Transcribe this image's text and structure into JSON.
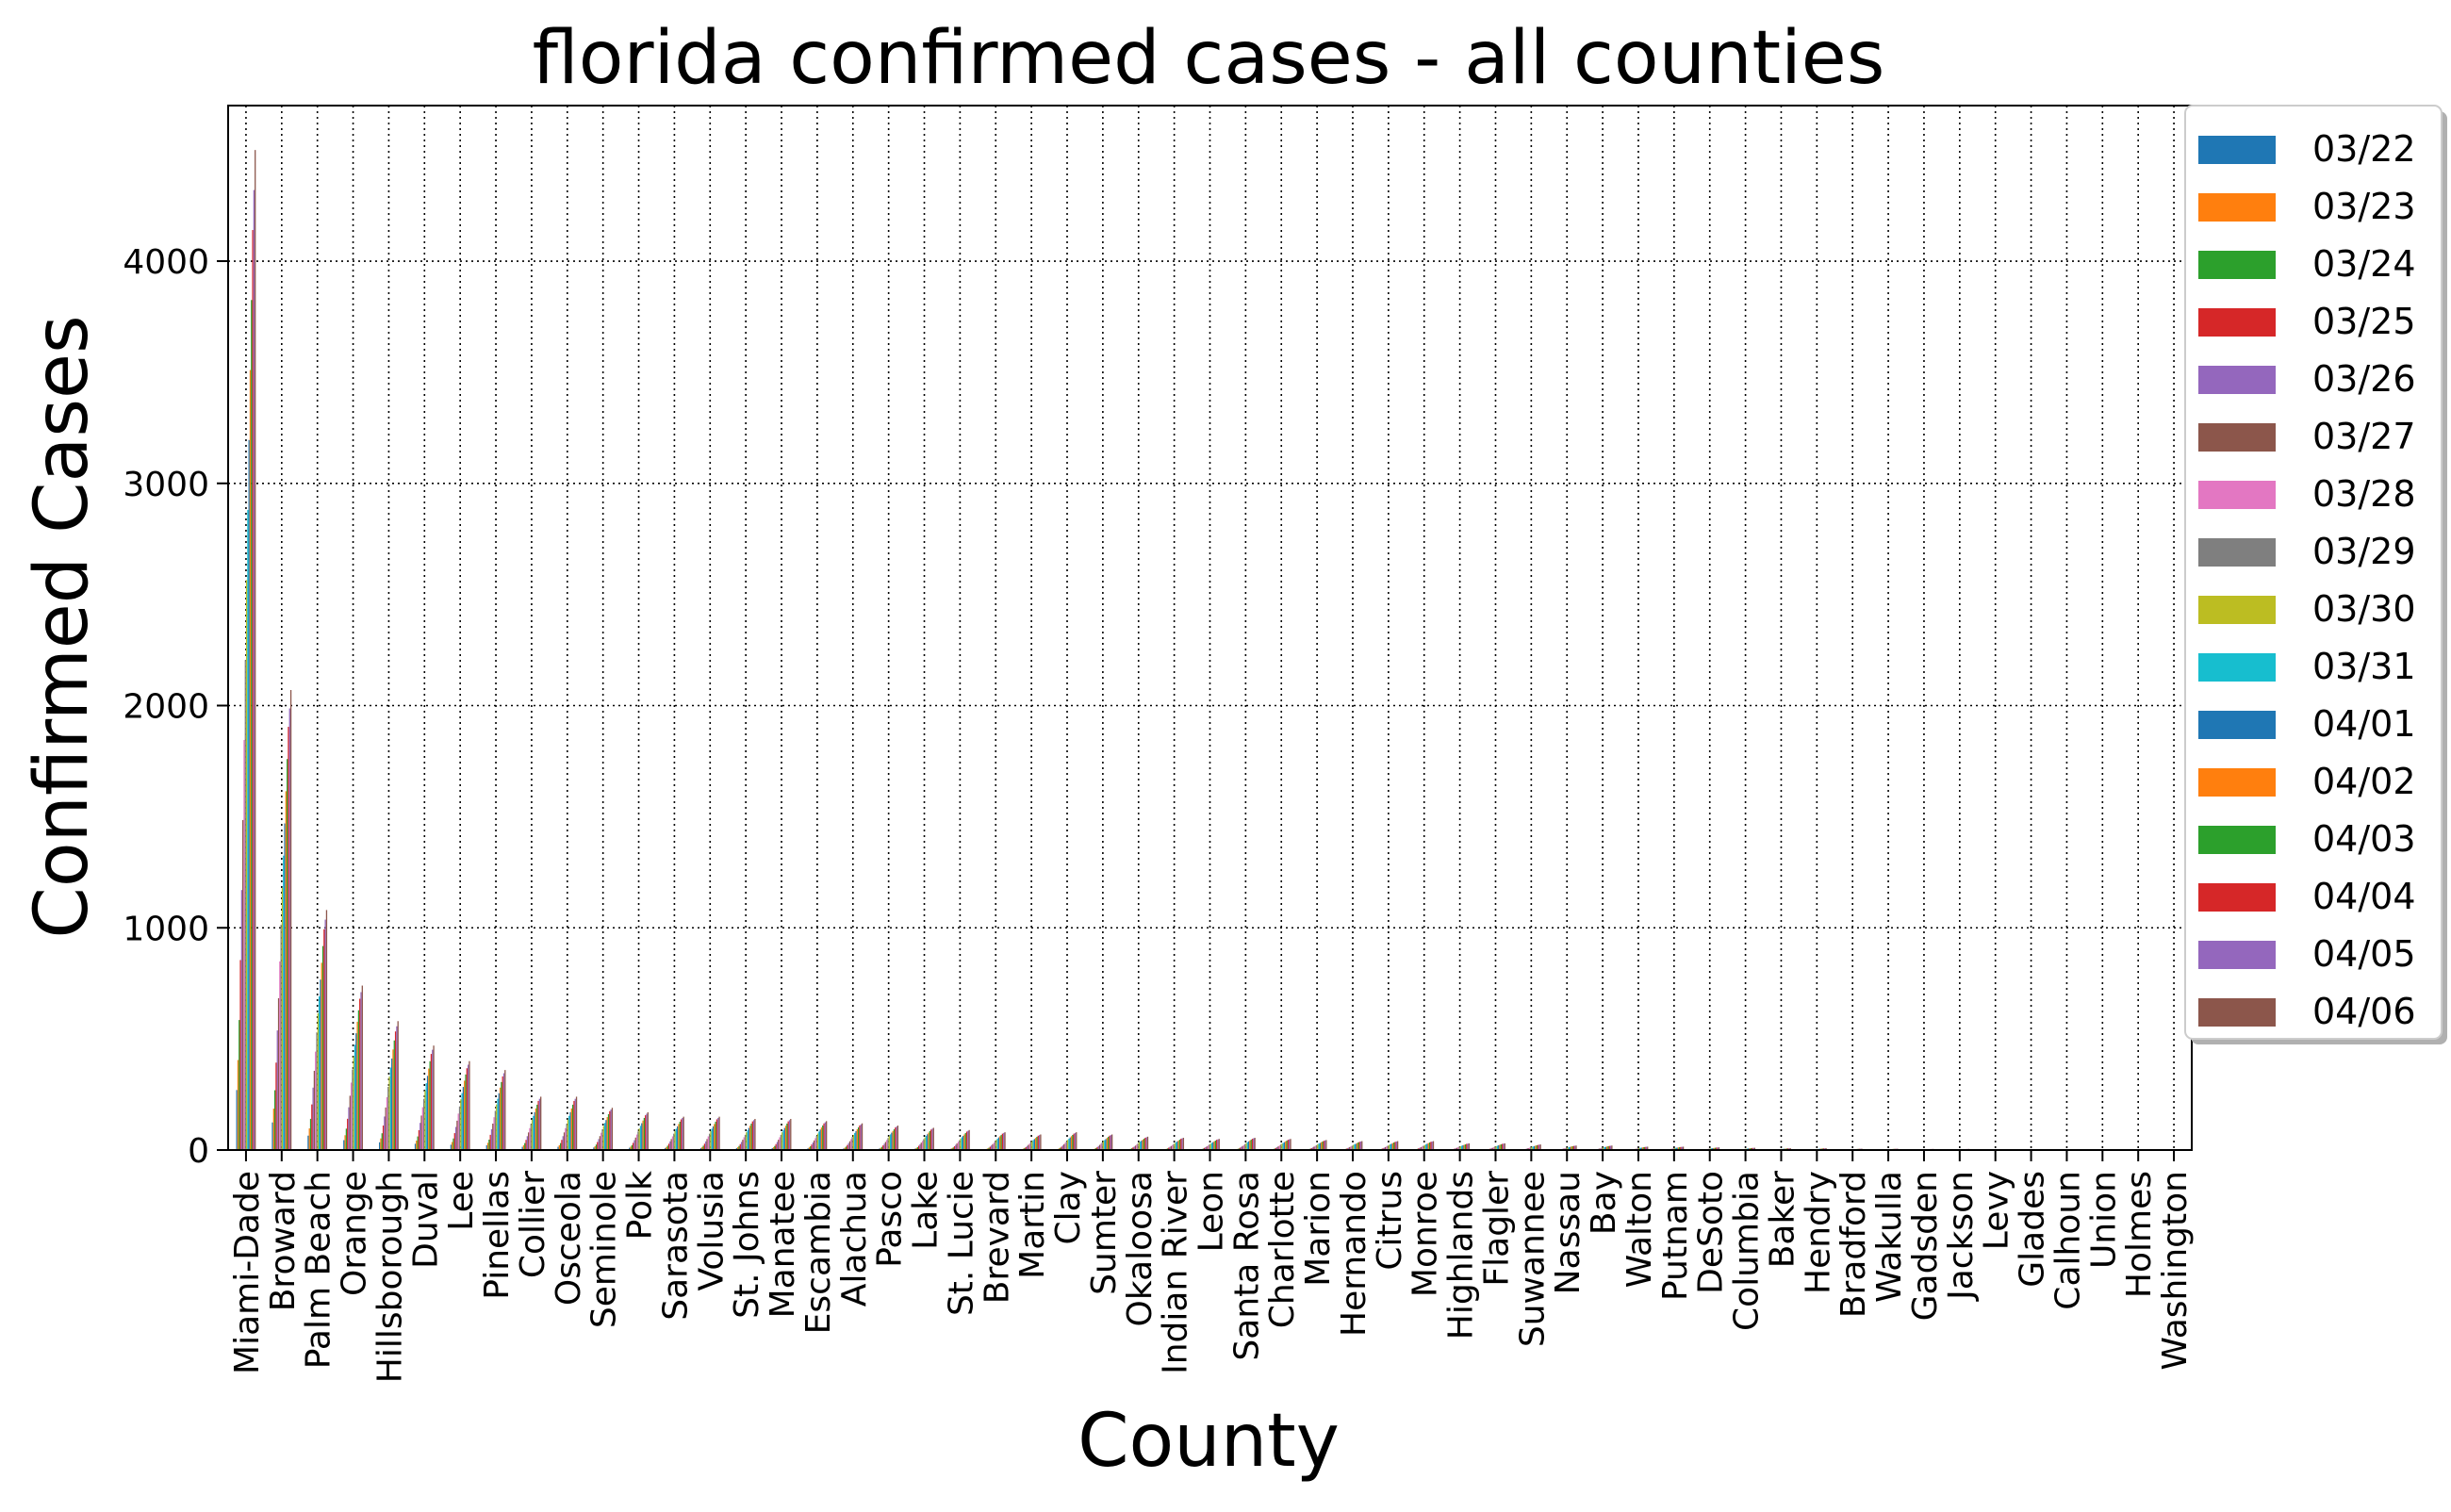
{
  "chart_data": {
    "type": "bar",
    "title": "florida confirmed cases - all counties",
    "xlabel": "County",
    "ylabel": "Confirmed Cases",
    "ylim": [
      0,
      4700
    ],
    "yticks": [
      0,
      1000,
      2000,
      3000,
      4000
    ],
    "grid": true,
    "legend_position": "top-right",
    "categories": [
      "Miami-Dade",
      "Broward",
      "Palm Beach",
      "Orange",
      "Hillsborough",
      "Duval",
      "Lee",
      "Pinellas",
      "Collier",
      "Osceola",
      "Seminole",
      "Polk",
      "Sarasota",
      "Volusia",
      "St. Johns",
      "Manatee",
      "Escambia",
      "Alachua",
      "Pasco",
      "Lake",
      "St. Lucie",
      "Brevard",
      "Martin",
      "Clay",
      "Sumter",
      "Okaloosa",
      "Indian River",
      "Leon",
      "Santa Rosa",
      "Charlotte",
      "Marion",
      "Hernando",
      "Citrus",
      "Monroe",
      "Highlands",
      "Flagler",
      "Suwannee",
      "Nassau",
      "Bay",
      "Walton",
      "Putnam",
      "DeSoto",
      "Columbia",
      "Baker",
      "Hendry",
      "Bradford",
      "Wakulla",
      "Gadsden",
      "Jackson",
      "Levy",
      "Glades",
      "Calhoun",
      "Union",
      "Holmes",
      "Washington"
    ],
    "dates": [
      "03/22",
      "03/23",
      "03/24",
      "03/25",
      "03/26",
      "03/27",
      "03/28",
      "03/29",
      "03/30",
      "03/31",
      "04/01",
      "04/02",
      "04/03",
      "04/04",
      "04/05",
      "04/06"
    ],
    "series_colors": [
      "#1f77b4",
      "#ff7f0e",
      "#2ca02c",
      "#d62728",
      "#9467bd",
      "#8c564b",
      "#e377c2",
      "#7f7f7f",
      "#bcbd22",
      "#17becf",
      "#1f77b4",
      "#ff7f0e",
      "#2ca02c",
      "#d62728",
      "#9467bd",
      "#8c564b"
    ],
    "final_values": [
      4500,
      2070,
      1080,
      740,
      580,
      470,
      400,
      360,
      240,
      240,
      190,
      170,
      150,
      150,
      140,
      140,
      130,
      120,
      110,
      100,
      90,
      80,
      70,
      80,
      70,
      60,
      55,
      50,
      55,
      50,
      45,
      40,
      40,
      40,
      30,
      30,
      25,
      20,
      20,
      15,
      15,
      12,
      10,
      8,
      8,
      6,
      6,
      5,
      5,
      4,
      3,
      3,
      2,
      2,
      2
    ],
    "growth_factors": [
      0.06,
      0.09,
      0.13,
      0.19,
      0.26,
      0.33,
      0.41,
      0.49,
      0.57,
      0.64,
      0.71,
      0.78,
      0.85,
      0.92,
      0.96,
      1.0
    ]
  }
}
